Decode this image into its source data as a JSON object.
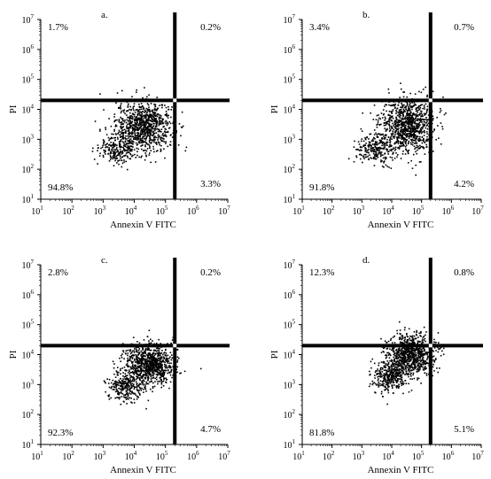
{
  "chart_data": [
    {
      "type": "scatter",
      "panel_label": "a.",
      "xlabel": "Annexin V FITC",
      "ylabel": "PI",
      "x_scale": "log",
      "y_scale": "log",
      "xlim": [
        10,
        10000000
      ],
      "ylim": [
        10,
        10000000
      ],
      "x_ticks": [
        {
          "base": "10",
          "exp": "1"
        },
        {
          "base": "10",
          "exp": "2"
        },
        {
          "base": "10",
          "exp": "3"
        },
        {
          "base": "10",
          "exp": "4"
        },
        {
          "base": "10",
          "exp": "5"
        },
        {
          "base": "10",
          "exp": "6"
        },
        {
          "base": "10",
          "exp": "7"
        }
      ],
      "y_ticks": [
        {
          "base": "10",
          "exp": "1"
        },
        {
          "base": "10",
          "exp": "2"
        },
        {
          "base": "10",
          "exp": "3"
        },
        {
          "base": "10",
          "exp": "4"
        },
        {
          "base": "10",
          "exp": "5"
        },
        {
          "base": "10",
          "exp": "6"
        },
        {
          "base": "10",
          "exp": "7"
        }
      ],
      "gate_x": 200000,
      "gate_y": 20000,
      "quadrants": {
        "upper_left": "1.7%",
        "upper_right": "0.2%",
        "lower_left": "94.8%",
        "lower_right": "3.3%"
      },
      "clusters": [
        {
          "center_x": 20000,
          "center_y": 3000,
          "spread_x_decades": 0.45,
          "spread_y_decades": 0.4,
          "count": 900
        },
        {
          "center_x": 3000,
          "center_y": 500,
          "spread_x_decades": 0.35,
          "spread_y_decades": 0.25,
          "count": 250
        }
      ]
    },
    {
      "type": "scatter",
      "panel_label": "b.",
      "xlabel": "Annexin V FITC",
      "ylabel": "PI",
      "x_scale": "log",
      "y_scale": "log",
      "xlim": [
        10,
        10000000
      ],
      "ylim": [
        10,
        10000000
      ],
      "x_ticks": [
        {
          "base": "10",
          "exp": "1"
        },
        {
          "base": "10",
          "exp": "2"
        },
        {
          "base": "10",
          "exp": "3"
        },
        {
          "base": "10",
          "exp": "4"
        },
        {
          "base": "10",
          "exp": "5"
        },
        {
          "base": "10",
          "exp": "6"
        },
        {
          "base": "10",
          "exp": "7"
        }
      ],
      "y_ticks": [
        {
          "base": "10",
          "exp": "1"
        },
        {
          "base": "10",
          "exp": "2"
        },
        {
          "base": "10",
          "exp": "3"
        },
        {
          "base": "10",
          "exp": "4"
        },
        {
          "base": "10",
          "exp": "5"
        },
        {
          "base": "10",
          "exp": "6"
        },
        {
          "base": "10",
          "exp": "7"
        }
      ],
      "gate_x": 200000,
      "gate_y": 20000,
      "quadrants": {
        "upper_left": "3.4%",
        "upper_right": "0.7%",
        "lower_left": "91.8%",
        "lower_right": "4.2%"
      },
      "clusters": [
        {
          "center_x": 30000,
          "center_y": 3000,
          "spread_x_decades": 0.45,
          "spread_y_decades": 0.45,
          "count": 950
        },
        {
          "center_x": 3000,
          "center_y": 500,
          "spread_x_decades": 0.35,
          "spread_y_decades": 0.25,
          "count": 250
        }
      ]
    },
    {
      "type": "scatter",
      "panel_label": "c.",
      "xlabel": "Annexin V FITC",
      "ylabel": "PI",
      "x_scale": "log",
      "y_scale": "log",
      "xlim": [
        10,
        10000000
      ],
      "ylim": [
        10,
        10000000
      ],
      "x_ticks": [
        {
          "base": "10",
          "exp": "1"
        },
        {
          "base": "10",
          "exp": "2"
        },
        {
          "base": "10",
          "exp": "3"
        },
        {
          "base": "10",
          "exp": "4"
        },
        {
          "base": "10",
          "exp": "5"
        },
        {
          "base": "10",
          "exp": "6"
        },
        {
          "base": "10",
          "exp": "7"
        }
      ],
      "y_ticks": [
        {
          "base": "10",
          "exp": "1"
        },
        {
          "base": "10",
          "exp": "2"
        },
        {
          "base": "10",
          "exp": "3"
        },
        {
          "base": "10",
          "exp": "4"
        },
        {
          "base": "10",
          "exp": "5"
        },
        {
          "base": "10",
          "exp": "6"
        },
        {
          "base": "10",
          "exp": "7"
        }
      ],
      "gate_x": 200000,
      "gate_y": 20000,
      "quadrants": {
        "upper_left": "2.8%",
        "upper_right": "0.2%",
        "lower_left": "92.3%",
        "lower_right": "4.7%"
      },
      "clusters": [
        {
          "center_x": 30000,
          "center_y": 5000,
          "spread_x_decades": 0.4,
          "spread_y_decades": 0.35,
          "count": 900
        },
        {
          "center_x": 5000,
          "center_y": 1000,
          "spread_x_decades": 0.3,
          "spread_y_decades": 0.25,
          "count": 300
        }
      ]
    },
    {
      "type": "scatter",
      "panel_label": "d.",
      "xlabel": "Annexin V FITC",
      "ylabel": "PI",
      "x_scale": "log",
      "y_scale": "log",
      "xlim": [
        10,
        10000000
      ],
      "ylim": [
        10,
        10000000
      ],
      "x_ticks": [
        {
          "base": "10",
          "exp": "1"
        },
        {
          "base": "10",
          "exp": "2"
        },
        {
          "base": "10",
          "exp": "3"
        },
        {
          "base": "10",
          "exp": "4"
        },
        {
          "base": "10",
          "exp": "5"
        },
        {
          "base": "10",
          "exp": "6"
        },
        {
          "base": "10",
          "exp": "7"
        }
      ],
      "y_ticks": [
        {
          "base": "10",
          "exp": "1"
        },
        {
          "base": "10",
          "exp": "2"
        },
        {
          "base": "10",
          "exp": "3"
        },
        {
          "base": "10",
          "exp": "4"
        },
        {
          "base": "10",
          "exp": "5"
        },
        {
          "base": "10",
          "exp": "6"
        },
        {
          "base": "10",
          "exp": "7"
        }
      ],
      "gate_x": 200000,
      "gate_y": 20000,
      "quadrants": {
        "upper_left": "12.3%",
        "upper_right": "0.8%",
        "lower_left": "81.8%",
        "lower_right": "5.1%"
      },
      "clusters": [
        {
          "center_x": 40000,
          "center_y": 10000,
          "spread_x_decades": 0.4,
          "spread_y_decades": 0.35,
          "count": 850
        },
        {
          "center_x": 8000,
          "center_y": 2000,
          "spread_x_decades": 0.3,
          "spread_y_decades": 0.25,
          "count": 350
        }
      ]
    }
  ]
}
